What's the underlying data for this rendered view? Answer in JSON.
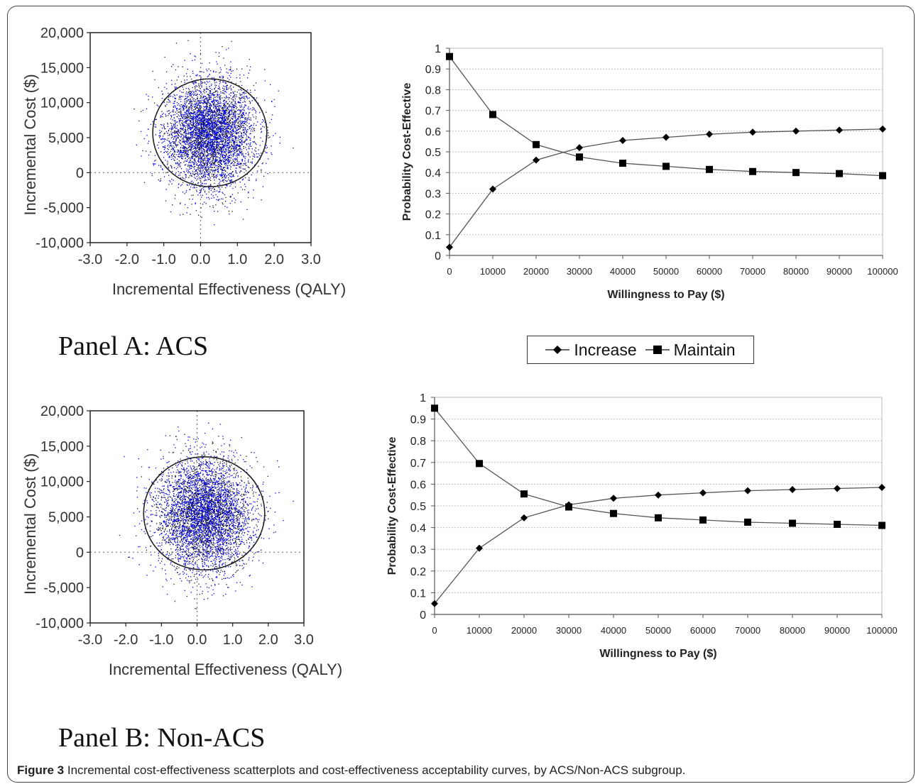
{
  "caption": {
    "label": "Figure 3",
    "text": "Incremental cost-effectiveness scatterplots and cost-effectiveness acceptability curves, by ACS/Non-ACS subgroup."
  },
  "legend": {
    "items": [
      {
        "name": "Increase",
        "marker": "diamond"
      },
      {
        "name": "Maintain",
        "marker": "square"
      }
    ]
  },
  "panels": [
    {
      "title": "Panel A: ACS"
    },
    {
      "title": "Panel B: Non-ACS"
    }
  ],
  "colors": {
    "scatter_points": "#0000ee",
    "lines": "#555555",
    "markers": "#000000",
    "grid": "#bdbdbd"
  },
  "chart_data": [
    {
      "id": "scatter-a",
      "type": "scatter",
      "title": "",
      "xlabel": "Incremental Effectiveness (QALY)",
      "ylabel": "Incremental Cost ($)",
      "xlim": [
        -3.0,
        3.0
      ],
      "ylim": [
        -10000,
        20000
      ],
      "xticks": [
        "-3.0",
        "-2.0",
        "-1.0",
        "0.0",
        "1.0",
        "2.0",
        "3.0"
      ],
      "yticks": [
        "-10,000",
        "-5,000",
        "0",
        "5,000",
        "10,000",
        "15,000",
        "20,000"
      ],
      "cloud": {
        "center_x": 0.25,
        "center_y": 5600,
        "sd_x": 0.6,
        "sd_y": 3800,
        "n_points": 5000
      },
      "ellipse": {
        "center_x": 0.25,
        "center_y": 5700,
        "radius_x": 1.55,
        "radius_y": 7700
      },
      "reference_lines": {
        "x": 0,
        "y": 0,
        "style": "dotted"
      }
    },
    {
      "id": "ceac-a",
      "type": "line",
      "title": "",
      "xlabel": "Willingness to Pay ($)",
      "ylabel": "Probability Cost-Effective",
      "xlim": [
        0,
        100000
      ],
      "ylim": [
        0,
        1
      ],
      "grid": true,
      "x": [
        0,
        10000,
        20000,
        30000,
        40000,
        50000,
        60000,
        70000,
        80000,
        90000,
        100000
      ],
      "xtick_labels": [
        "0",
        "10000",
        "20000",
        "30000",
        "40000",
        "50000",
        "60000",
        "70000",
        "80000",
        "90000",
        "100000"
      ],
      "ytick_labels": [
        "0",
        "0.1",
        "0.2",
        "0.3",
        "0.4",
        "0.5",
        "0.6",
        "0.7",
        "0.8",
        "0.9",
        "1"
      ],
      "series": [
        {
          "name": "Increase",
          "marker": "diamond",
          "values": [
            0.04,
            0.32,
            0.46,
            0.52,
            0.555,
            0.57,
            0.585,
            0.595,
            0.6,
            0.605,
            0.61
          ]
        },
        {
          "name": "Maintain",
          "marker": "square",
          "values": [
            0.96,
            0.68,
            0.535,
            0.475,
            0.445,
            0.43,
            0.415,
            0.405,
            0.4,
            0.395,
            0.385
          ]
        }
      ]
    },
    {
      "id": "scatter-b",
      "type": "scatter",
      "title": "",
      "xlabel": "Incremental Effectiveness (QALY)",
      "ylabel": "Incremental Cost ($)",
      "xlim": [
        -3.0,
        3.0
      ],
      "ylim": [
        -10000,
        20000
      ],
      "xticks": [
        "-3.0",
        "-2.0",
        "-1.0",
        "0.0",
        "1.0",
        "2.0",
        "3.0"
      ],
      "yticks": [
        "-10,000",
        "-5,000",
        "0",
        "5,000",
        "10,000",
        "15,000",
        "20,000"
      ],
      "cloud": {
        "center_x": 0.2,
        "center_y": 5400,
        "sd_x": 0.65,
        "sd_y": 3900,
        "n_points": 5000
      },
      "ellipse": {
        "center_x": 0.2,
        "center_y": 5500,
        "radius_x": 1.7,
        "radius_y": 8000
      },
      "reference_lines": {
        "x": 0,
        "y": 0,
        "style": "dotted"
      }
    },
    {
      "id": "ceac-b",
      "type": "line",
      "title": "",
      "xlabel": "Willingness to Pay ($)",
      "ylabel": "Probability Cost-Effective",
      "xlim": [
        0,
        100000
      ],
      "ylim": [
        0,
        1
      ],
      "grid": true,
      "x": [
        0,
        10000,
        20000,
        30000,
        40000,
        50000,
        60000,
        70000,
        80000,
        90000,
        100000
      ],
      "xtick_labels": [
        "0",
        "10000",
        "20000",
        "30000",
        "40000",
        "50000",
        "60000",
        "70000",
        "80000",
        "90000",
        "100000"
      ],
      "ytick_labels": [
        "0",
        "0.1",
        "0.2",
        "0.3",
        "0.4",
        "0.5",
        "0.6",
        "0.7",
        "0.8",
        "0.9",
        "1"
      ],
      "series": [
        {
          "name": "Increase",
          "marker": "diamond",
          "values": [
            0.05,
            0.305,
            0.445,
            0.505,
            0.535,
            0.55,
            0.56,
            0.57,
            0.575,
            0.58,
            0.585
          ]
        },
        {
          "name": "Maintain",
          "marker": "square",
          "values": [
            0.95,
            0.695,
            0.555,
            0.495,
            0.465,
            0.445,
            0.435,
            0.425,
            0.42,
            0.415,
            0.41
          ]
        }
      ]
    }
  ]
}
